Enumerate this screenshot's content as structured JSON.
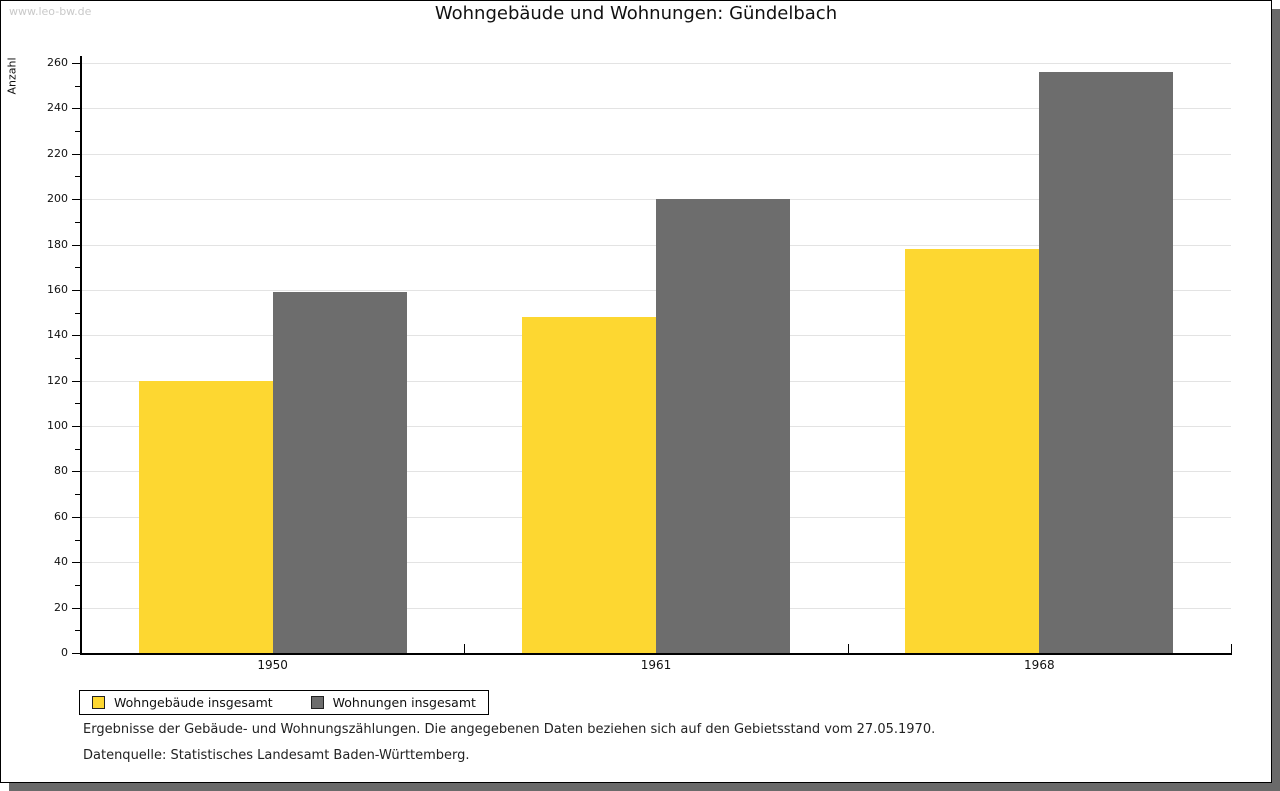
{
  "watermark": "www.leo-bw.de",
  "title": "Wohngebäude und Wohnungen: Gündelbach",
  "chart_data": {
    "type": "bar",
    "title": "Wohngebäude und Wohnungen: Gündelbach",
    "categories": [
      "1950",
      "1961",
      "1968"
    ],
    "series": [
      {
        "name": "Wohngebäude insgesamt",
        "color": "#fdd731",
        "values": [
          120,
          148,
          178
        ]
      },
      {
        "name": "Wohnungen insgesamt",
        "color": "#6d6d6d",
        "values": [
          159,
          200,
          256
        ]
      }
    ],
    "xlabel": "",
    "ylabel": "Anzahl",
    "ylim": [
      0,
      260
    ],
    "ytick_step": 20,
    "minor_tick_step": 10,
    "grid": true,
    "gridline_color": "#e3e3e3",
    "legend_position": "bottom-left"
  },
  "footer": {
    "line1": "Ergebnisse der Gebäude- und Wohnungszählungen. Die angegebenen Daten beziehen sich auf den Gebietsstand vom 27.05.1970.",
    "line2": "Datenquelle: Statistisches Landesamt Baden-Württemberg."
  }
}
